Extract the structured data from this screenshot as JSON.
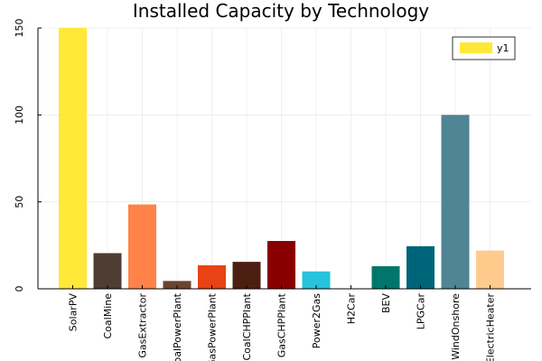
{
  "chart_data": {
    "type": "bar",
    "title": "Installed Capacity by Technology",
    "xlabel": "",
    "ylabel": "",
    "categories": [
      "SolarPV",
      "CoalMine",
      "GasExtractor",
      "CoalPowerPlant",
      "GasPowerPlant",
      "CoalCHPPlant",
      "GasCHPPlant",
      "Power2Gas",
      "H2Car",
      "BEV",
      "LPGCar",
      "WindOnshore",
      "ElectricHeater"
    ],
    "series": [
      {
        "name": "y1",
        "values": [
          150,
          20.5,
          48.5,
          4.5,
          13.5,
          15.5,
          27.5,
          10,
          0,
          13,
          24.5,
          100,
          22
        ]
      }
    ],
    "bar_colors": [
      "#ffe838",
      "#4e3d33",
      "#ff8348",
      "#6a4431",
      "#e84215",
      "#4a1f12",
      "#8a0000",
      "#27c2dc",
      "#ffffff",
      "#00766b",
      "#006479",
      "#4f8594",
      "#ffcb8d"
    ],
    "ylim": [
      0,
      150
    ],
    "yticks": [
      0,
      50,
      100,
      150
    ],
    "grid": true,
    "legend_position": "top-right",
    "legend_color": "#ffe838"
  }
}
